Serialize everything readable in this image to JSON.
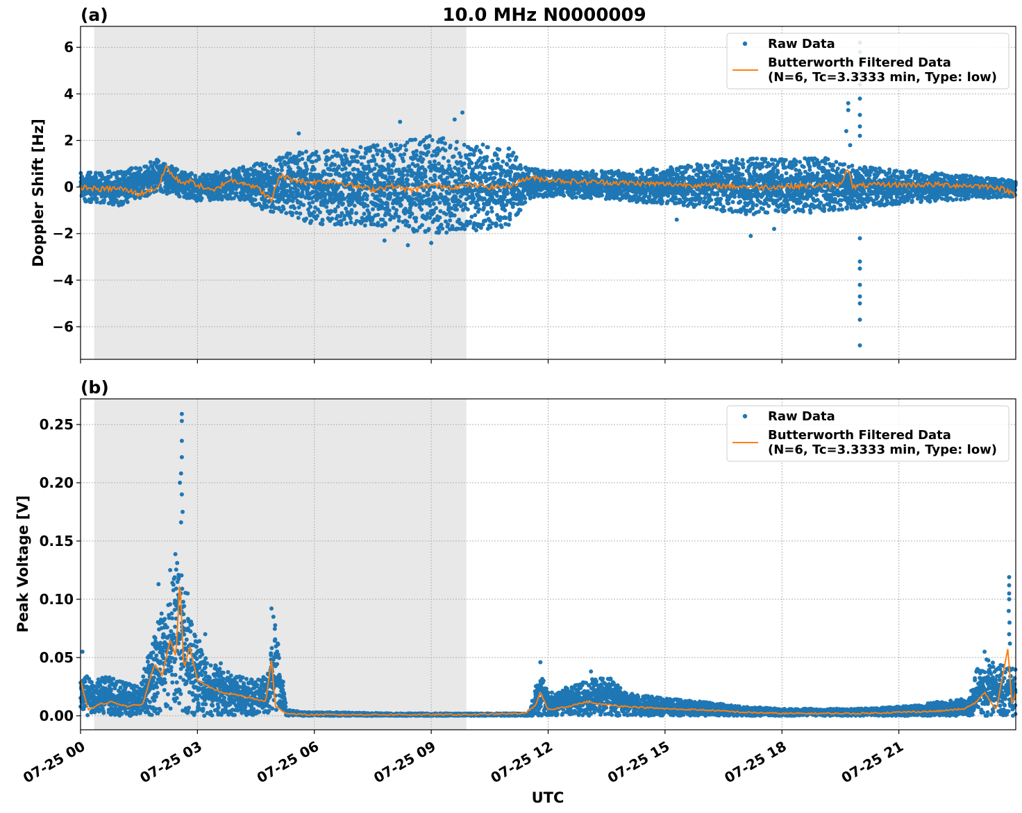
{
  "title": "10.0 MHz N0000009",
  "xlabel": "UTC",
  "colors": {
    "raw": "#1f77b4",
    "filtered": "#ff7f0e",
    "shade": "#e8e8e8",
    "grid": "#b0b0b0"
  },
  "legend": {
    "raw_label": "Raw Data",
    "filtered_label_line1": "Butterworth Filtered Data",
    "filtered_label_line2": "(N=6, Tc=3.3333 min, Type: low)"
  },
  "chart_data": [
    {
      "panel_label": "(a)",
      "type": "scatter",
      "ylabel": "Doppler Shift [Hz]",
      "xlim_hours": [
        0,
        24
      ],
      "ylim": [
        -7.4,
        6.9
      ],
      "yticks": [
        6,
        4,
        2,
        0,
        -2,
        -4,
        -6
      ],
      "ytick_labels": [
        "6",
        "4",
        "2",
        "0",
        "−2",
        "−4",
        "−6"
      ],
      "shaded_interval_hours": [
        0.35,
        9.9
      ],
      "grid": true,
      "legend_position": "top-right",
      "series": [
        {
          "name": "Raw Data",
          "kind": "scatter",
          "envelope": {
            "x_hours": [
              0,
              1,
              2,
              3,
              4,
              5,
              5.5,
              6,
              7,
              8,
              9,
              10,
              11,
              11.5,
              12,
              14,
              16,
              17,
              18,
              19,
              20,
              22,
              24
            ],
            "upper": [
              0.6,
              0.7,
              1.2,
              0.5,
              0.8,
              1.2,
              1.6,
              1.5,
              1.7,
              1.9,
              2.2,
              1.9,
              1.7,
              0.8,
              0.7,
              0.7,
              1.0,
              1.3,
              1.2,
              1.3,
              0.9,
              0.6,
              0.3
            ],
            "lower": [
              -0.6,
              -0.8,
              -0.2,
              -0.6,
              -0.5,
              -1.2,
              -1.4,
              -1.6,
              -1.7,
              -1.9,
              -2.0,
              -1.9,
              -1.7,
              -0.5,
              -0.4,
              -0.6,
              -0.9,
              -1.2,
              -1.1,
              -1.1,
              -0.9,
              -0.6,
              -0.4
            ]
          },
          "outliers": [
            {
              "x": 8.2,
              "y": 2.8
            },
            {
              "x": 9.8,
              "y": 3.2
            },
            {
              "x": 9.6,
              "y": 2.9
            },
            {
              "x": 5.6,
              "y": 2.3
            },
            {
              "x": 19.7,
              "y": 3.6
            },
            {
              "x": 19.7,
              "y": 3.3
            },
            {
              "x": 19.65,
              "y": 2.4
            },
            {
              "x": 19.75,
              "y": 1.8
            },
            {
              "x": 20.0,
              "y": 6.2
            },
            {
              "x": 20.0,
              "y": 5.8
            },
            {
              "x": 20.0,
              "y": 5.3
            },
            {
              "x": 20.0,
              "y": 4.9
            },
            {
              "x": 20.0,
              "y": 4.4
            },
            {
              "x": 20.0,
              "y": 3.8
            },
            {
              "x": 20.0,
              "y": 3.1
            },
            {
              "x": 20.0,
              "y": 2.6
            },
            {
              "x": 20.0,
              "y": 2.2
            },
            {
              "x": 20.0,
              "y": -2.2
            },
            {
              "x": 20.0,
              "y": -3.2
            },
            {
              "x": 20.0,
              "y": -3.5
            },
            {
              "x": 20.0,
              "y": -4.2
            },
            {
              "x": 20.0,
              "y": -4.7
            },
            {
              "x": 20.0,
              "y": -5.0
            },
            {
              "x": 20.0,
              "y": -5.7
            },
            {
              "x": 20.0,
              "y": -6.8
            },
            {
              "x": 8.4,
              "y": -2.5
            },
            {
              "x": 9.0,
              "y": -2.4
            },
            {
              "x": 7.8,
              "y": -2.3
            },
            {
              "x": 17.2,
              "y": -2.1
            },
            {
              "x": 17.8,
              "y": -1.8
            },
            {
              "x": 15.3,
              "y": -1.4
            }
          ]
        },
        {
          "name": "Butterworth Filtered Data",
          "kind": "line",
          "x_hours": [
            0,
            0.5,
            1.0,
            1.5,
            2.0,
            2.2,
            2.4,
            2.6,
            2.8,
            3.0,
            3.4,
            3.8,
            4.2,
            4.6,
            4.9,
            5.1,
            5.4,
            5.8,
            6.5,
            7.0,
            7.5,
            8.0,
            8.5,
            9.0,
            9.5,
            10.0,
            10.5,
            11.0,
            11.5,
            11.8,
            12.5,
            13.5,
            14.5,
            15.5,
            16.5,
            17.5,
            18.5,
            19.5,
            19.7,
            19.8,
            20.0,
            20.5,
            21.0,
            22.0,
            23.0,
            23.5,
            24.0
          ],
          "values": [
            0.0,
            -0.1,
            -0.05,
            -0.3,
            0.0,
            0.9,
            0.4,
            0.2,
            0.25,
            0.1,
            -0.2,
            0.3,
            0.2,
            -0.1,
            -0.6,
            0.5,
            0.35,
            0.2,
            0.25,
            0.05,
            -0.1,
            0.05,
            -0.15,
            0.1,
            0.0,
            0.1,
            0.0,
            0.05,
            0.4,
            0.35,
            0.25,
            0.2,
            0.15,
            0.1,
            0.05,
            0.0,
            0.05,
            0.1,
            0.9,
            0.0,
            0.05,
            0.1,
            0.1,
            0.1,
            0.05,
            0.0,
            -0.3
          ]
        }
      ]
    },
    {
      "panel_label": "(b)",
      "type": "scatter",
      "ylabel": "Peak Voltage [V]",
      "xlim_hours": [
        0,
        24
      ],
      "ylim": [
        -0.012,
        0.272
      ],
      "yticks": [
        0.25,
        0.2,
        0.15,
        0.1,
        0.05,
        0.0
      ],
      "ytick_labels": [
        "0.25",
        "0.20",
        "0.15",
        "0.10",
        "0.05",
        "0.00"
      ],
      "shaded_interval_hours": [
        0.35,
        9.9
      ],
      "xticks_hours": [
        0,
        3,
        6,
        9,
        12,
        15,
        18,
        21
      ],
      "xtick_labels": [
        "07-25 00",
        "07-25 03",
        "07-25 06",
        "07-25 09",
        "07-25 12",
        "07-25 15",
        "07-25 18",
        "07-25 21"
      ],
      "grid": true,
      "legend_position": "top-right",
      "series": [
        {
          "name": "Raw Data",
          "kind": "scatter",
          "envelope": {
            "x_hours": [
              0,
              0.3,
              0.6,
              1.0,
              1.5,
              1.9,
              2.0,
              2.3,
              2.5,
              2.6,
              2.8,
              3.2,
              3.6,
              4.0,
              4.5,
              4.8,
              5.0,
              5.3,
              5.8,
              6.5,
              8,
              10,
              11.5,
              11.8,
              12.0,
              12.5,
              13.0,
              13.5,
              14.0,
              15.0,
              16.0,
              17.0,
              18.0,
              19.0,
              20.0,
              21.0,
              22.0,
              22.8,
              23.0,
              23.3,
              23.5,
              24.0
            ],
            "upper": [
              0.04,
              0.03,
              0.035,
              0.03,
              0.025,
              0.07,
              0.09,
              0.1,
              0.16,
              0.12,
              0.09,
              0.05,
              0.04,
              0.035,
              0.03,
              0.035,
              0.08,
              0.005,
              0.003,
              0.003,
              0.002,
              0.002,
              0.002,
              0.04,
              0.02,
              0.025,
              0.03,
              0.035,
              0.02,
              0.015,
              0.012,
              0.008,
              0.006,
              0.006,
              0.006,
              0.008,
              0.012,
              0.015,
              0.04,
              0.05,
              0.045,
              0.04
            ],
            "lower": [
              0.0,
              0.0,
              0.0,
              0.0,
              0.0,
              0.0,
              0.0,
              0.005,
              0.01,
              0.005,
              0.0,
              0.0,
              0.0,
              0.0,
              0.0,
              0.0,
              0.005,
              0.0,
              0.0,
              0.0,
              0.0,
              0.0,
              0.0,
              0.0,
              0.0,
              0.0,
              0.0,
              0.0,
              0.0,
              0.0,
              0.0,
              0.0,
              0.0,
              0.0,
              0.0,
              0.0,
              0.0,
              0.0,
              0.0,
              0.0,
              0.0,
              0.0
            ]
          },
          "outliers": [
            {
              "x": 2.6,
              "y": 0.259
            },
            {
              "x": 2.6,
              "y": 0.253
            },
            {
              "x": 2.6,
              "y": 0.236
            },
            {
              "x": 2.6,
              "y": 0.222
            },
            {
              "x": 2.58,
              "y": 0.208
            },
            {
              "x": 2.55,
              "y": 0.2
            },
            {
              "x": 2.6,
              "y": 0.19
            },
            {
              "x": 2.62,
              "y": 0.175
            },
            {
              "x": 2.58,
              "y": 0.166
            },
            {
              "x": 2.3,
              "y": 0.125
            },
            {
              "x": 2.0,
              "y": 0.113
            },
            {
              "x": 2.75,
              "y": 0.105
            },
            {
              "x": 4.9,
              "y": 0.092
            },
            {
              "x": 4.95,
              "y": 0.085
            },
            {
              "x": 0.05,
              "y": 0.055
            },
            {
              "x": 3.2,
              "y": 0.07
            },
            {
              "x": 3.6,
              "y": 0.045
            },
            {
              "x": 23.83,
              "y": 0.119
            },
            {
              "x": 23.83,
              "y": 0.112
            },
            {
              "x": 23.83,
              "y": 0.105
            },
            {
              "x": 23.83,
              "y": 0.1
            },
            {
              "x": 23.82,
              "y": 0.09
            },
            {
              "x": 23.84,
              "y": 0.08
            },
            {
              "x": 23.83,
              "y": 0.07
            },
            {
              "x": 23.85,
              "y": 0.062
            },
            {
              "x": 23.2,
              "y": 0.055
            },
            {
              "x": 11.8,
              "y": 0.046
            },
            {
              "x": 13.1,
              "y": 0.038
            }
          ]
        },
        {
          "name": "Butterworth Filtered Data",
          "kind": "line",
          "x_hours": [
            0,
            0.2,
            0.5,
            0.8,
            1.2,
            1.6,
            1.9,
            2.1,
            2.3,
            2.45,
            2.55,
            2.65,
            2.8,
            3.0,
            3.3,
            3.6,
            4.0,
            4.4,
            4.75,
            4.9,
            5.0,
            5.3,
            5.8,
            6.5,
            8,
            10,
            11.4,
            11.7,
            11.8,
            12.0,
            12.5,
            13.0,
            13.3,
            14.0,
            15.0,
            16.0,
            17.0,
            18.0,
            19.0,
            20.0,
            21.0,
            22.0,
            22.7,
            23.0,
            23.2,
            23.5,
            23.8,
            23.9,
            24.0
          ],
          "values": [
            0.03,
            0.005,
            0.01,
            0.012,
            0.008,
            0.01,
            0.045,
            0.035,
            0.065,
            0.05,
            0.12,
            0.04,
            0.06,
            0.03,
            0.025,
            0.02,
            0.018,
            0.015,
            0.012,
            0.048,
            0.008,
            0.002,
            0.001,
            0.001,
            0.001,
            0.001,
            0.002,
            0.01,
            0.02,
            0.005,
            0.008,
            0.012,
            0.01,
            0.008,
            0.006,
            0.005,
            0.003,
            0.002,
            0.002,
            0.002,
            0.003,
            0.004,
            0.006,
            0.012,
            0.02,
            0.005,
            0.058,
            0.01,
            0.02
          ]
        }
      ]
    }
  ]
}
